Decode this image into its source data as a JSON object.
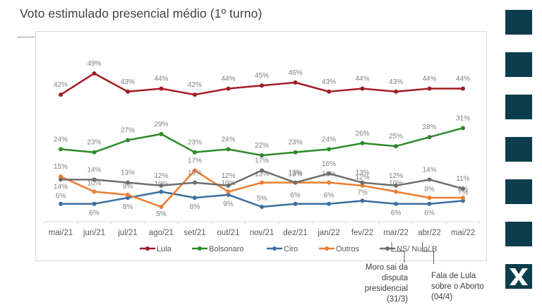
{
  "header": {
    "title": "Voto estimulado presencial médio (1º turno)"
  },
  "sidebar": {
    "squares": [
      "square-1",
      "square-2",
      "square-3",
      "square-4",
      "square-5",
      "square-6"
    ],
    "logo_icon": "x-logo-icon"
  },
  "chart_data": {
    "type": "line",
    "title": "Voto estimulado presencial médio (1º turno)",
    "xlabel": "",
    "ylabel": "",
    "ylim": [
      0,
      52
    ],
    "grid": false,
    "legend_position": "bottom",
    "categories": [
      "mai/21",
      "jun/21",
      "jul/21",
      "ago/21",
      "set/21",
      "out/21",
      "nov/21",
      "dez/21",
      "jan/22",
      "fev/22",
      "mar/22",
      "abr/22",
      "mai/22"
    ],
    "series": [
      {
        "name": "Lula",
        "color": "#a31b24",
        "values": [
          42,
          49,
          43,
          44,
          42,
          44,
          45,
          46,
          43,
          44,
          43,
          44,
          44
        ]
      },
      {
        "name": "Bolsonaro",
        "color": "#2e8a2a",
        "values": [
          24,
          23,
          27,
          29,
          23,
          24,
          22,
          23,
          24,
          26,
          25,
          28,
          31
        ]
      },
      {
        "name": "Ciro",
        "color": "#3a6fa0",
        "values": [
          6,
          6,
          8,
          10,
          8,
          9,
          5,
          6,
          6,
          7,
          6,
          6,
          7
        ]
      },
      {
        "name": "Outros",
        "color": "#ed7d31",
        "values": [
          15,
          10,
          9,
          5,
          17,
          10,
          13,
          13,
          13,
          12,
          10,
          8,
          8
        ]
      },
      {
        "name": "NS/ Nulo/ B",
        "color": "#6e6e6e",
        "values": [
          14,
          14,
          13,
          12,
          13,
          12,
          17,
          13,
          16,
          13,
          12,
          14,
          11
        ]
      }
    ],
    "annotations": [
      {
        "category": "mar/22",
        "text_lines": [
          "Moro sai da",
          "disputa",
          "presidencial",
          "(31/3)"
        ]
      },
      {
        "category": "abr/22",
        "text_lines": [
          "Fala de Lula",
          "sobre o Aborto",
          "(04/4)"
        ]
      }
    ]
  }
}
